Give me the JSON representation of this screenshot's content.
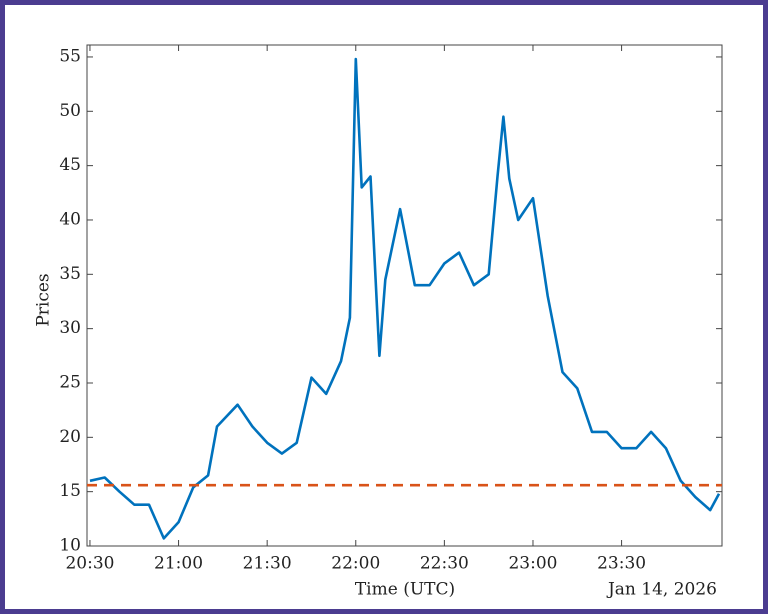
{
  "chart_data": {
    "type": "line",
    "x_label": "Time (UTC)",
    "y_label": "Prices",
    "annotation": "Jan 14, 2026",
    "x": [
      "20:30",
      "20:35",
      "20:40",
      "20:45",
      "20:50",
      "20:55",
      "21:00",
      "21:05",
      "21:10",
      "21:13",
      "21:20",
      "21:25",
      "21:30",
      "21:35",
      "21:40",
      "21:45",
      "21:50",
      "21:55",
      "21:58",
      "22:00",
      "22:02",
      "22:05",
      "22:08",
      "22:10",
      "22:15",
      "22:20",
      "22:25",
      "22:30",
      "22:35",
      "22:40",
      "22:45",
      "22:48",
      "22:50",
      "22:52",
      "22:55",
      "23:00",
      "23:05",
      "23:10",
      "23:15",
      "23:20",
      "23:25",
      "23:30",
      "23:35",
      "23:40",
      "23:45",
      "23:50",
      "23:55",
      "00:00",
      "00:03"
    ],
    "series": [
      {
        "name": "Prices",
        "color": "#0072bd",
        "values": [
          16,
          16.3,
          15,
          13.8,
          13.8,
          10.7,
          12.2,
          15.4,
          16.5,
          21,
          23,
          21,
          19.5,
          18.5,
          19.5,
          25.5,
          24,
          27,
          31,
          54.8,
          43,
          44,
          27.5,
          34.5,
          41,
          34,
          34,
          36,
          37,
          34,
          35,
          44,
          49.5,
          43.8,
          40,
          42,
          33,
          26,
          24.5,
          20.5,
          20.5,
          19,
          19,
          20.5,
          19,
          16,
          14.5,
          13.3,
          14.8
        ]
      }
    ],
    "threshold": {
      "value": 15.6,
      "color": "#d95319"
    },
    "xlim": [
      "20:29",
      "00:04"
    ],
    "xticks": [
      "20:30",
      "21:00",
      "21:30",
      "22:00",
      "22:30",
      "23:00",
      "23:30"
    ],
    "ylim": [
      10,
      56.1
    ],
    "yticks": [
      10,
      15,
      20,
      25,
      30,
      35,
      40,
      45,
      50,
      55
    ]
  }
}
